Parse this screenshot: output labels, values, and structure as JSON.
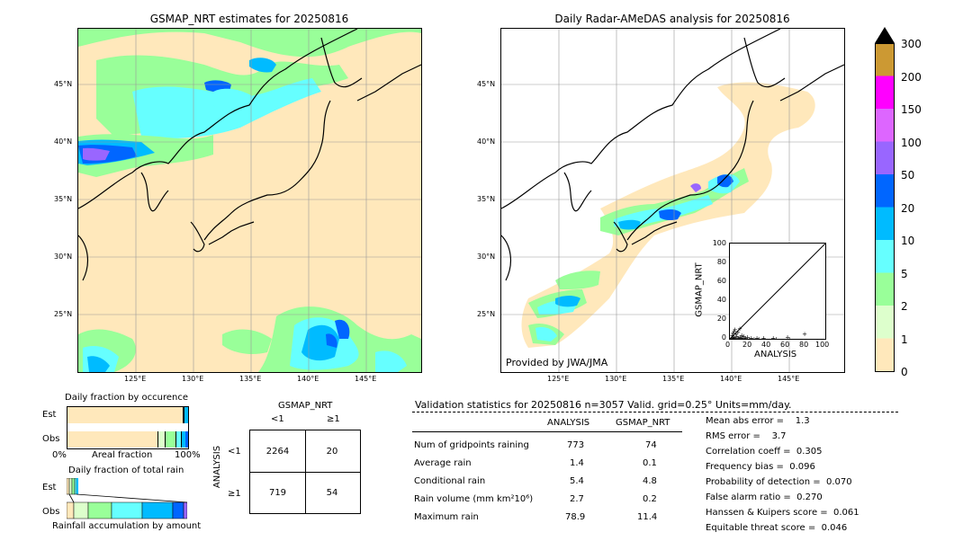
{
  "left_map": {
    "title": "GSMAP_NRT estimates for 20250816",
    "lat_labels": [
      "45°N",
      "40°N",
      "35°N",
      "30°N",
      "25°N"
    ],
    "lon_labels": [
      "125°E",
      "130°E",
      "135°E",
      "140°E",
      "145°E"
    ]
  },
  "right_map": {
    "title": "Daily Radar-AMeDAS analysis for 20250816",
    "lat_labels": [
      "45°N",
      "40°N",
      "35°N",
      "30°N",
      "25°N"
    ],
    "lon_labels": [
      "125°E",
      "130°E",
      "135°E",
      "140°E",
      "145°E"
    ],
    "credit": "Provided by JWA/JMA"
  },
  "colorbar": {
    "labels": [
      "300",
      "200",
      "150",
      "100",
      "50",
      "20",
      "10",
      "5",
      "2",
      "1",
      "0"
    ],
    "colors": [
      "#cc9933",
      "#ff00ff",
      "#dd66ff",
      "#9966ff",
      "#0066ff",
      "#00bbff",
      "#66ffff",
      "#99ff99",
      "#ddffcc",
      "#ffe8bb"
    ]
  },
  "scatter": {
    "xlabel": "ANALYSIS",
    "ylabel": "GSMAP_NRT",
    "ticks": [
      "0",
      "20",
      "40",
      "60",
      "80",
      "100"
    ]
  },
  "fraction_occurrence": {
    "title": "Daily fraction by occurence",
    "rows": [
      "Est",
      "Obs"
    ],
    "axis_left": "0%",
    "axis_mid": "Areal fraction",
    "axis_right": "100%"
  },
  "fraction_rain": {
    "title": "Daily fraction of total rain",
    "rows": [
      "Est",
      "Obs"
    ],
    "axis_label": "Rainfall accumulation by amount"
  },
  "contingency": {
    "top_header": "GSMAP_NRT",
    "col_labels": [
      "<1",
      "≥1"
    ],
    "side_header": "ANALYSIS",
    "row_labels": [
      "<1",
      "≥1"
    ],
    "cells": [
      [
        "2264",
        "20"
      ],
      [
        "719",
        "54"
      ]
    ]
  },
  "validation": {
    "header": "Validation statistics for 20250816  n=3057 Valid. grid=0.25° Units=mm/day.",
    "col_analysis": "ANALYSIS",
    "col_gsmap": "GSMAP_NRT",
    "rows": [
      {
        "label": "Num of gridpoints raining",
        "analysis": "773",
        "gsmap": "74"
      },
      {
        "label": "Average rain",
        "analysis": "1.4",
        "gsmap": "0.1"
      },
      {
        "label": "Conditional rain",
        "analysis": "5.4",
        "gsmap": "4.8"
      },
      {
        "label": "Rain volume (mm km²10⁶)",
        "analysis": "2.7",
        "gsmap": "0.2"
      },
      {
        "label": "Maximum rain",
        "analysis": "78.9",
        "gsmap": "11.4"
      }
    ],
    "scores": [
      "Mean abs error =    1.3",
      "RMS error =    3.7",
      "Correlation coeff =  0.305",
      "Frequency bias =  0.096",
      "Probability of detection =  0.070",
      "False alarm ratio =  0.270",
      "Hanssen & Kuipers score =  0.061",
      "Equitable threat score =  0.046"
    ]
  },
  "chart_data": {
    "type": "scatter",
    "xlabel": "ANALYSIS",
    "ylabel": "GSMAP_NRT",
    "xlim": [
      0,
      100
    ],
    "ylim": [
      0,
      100
    ],
    "points": [
      [
        1,
        0
      ],
      [
        2,
        1
      ],
      [
        3,
        0
      ],
      [
        4,
        2
      ],
      [
        5,
        1
      ],
      [
        6,
        0
      ],
      [
        7,
        3
      ],
      [
        8,
        1
      ],
      [
        9,
        0
      ],
      [
        10,
        2
      ],
      [
        11,
        1
      ],
      [
        12,
        0
      ],
      [
        13,
        1
      ],
      [
        14,
        3
      ],
      [
        15,
        0
      ],
      [
        16,
        1
      ],
      [
        18,
        2
      ],
      [
        20,
        0
      ],
      [
        22,
        1
      ],
      [
        25,
        0
      ],
      [
        28,
        1
      ],
      [
        30,
        0
      ],
      [
        35,
        1
      ],
      [
        45,
        1
      ],
      [
        48,
        0
      ],
      [
        60,
        2
      ],
      [
        62,
        0
      ],
      [
        78,
        5
      ],
      [
        2,
        4
      ],
      [
        3,
        6
      ],
      [
        4,
        8
      ],
      [
        5,
        10
      ],
      [
        6,
        5
      ],
      [
        8,
        7
      ],
      [
        10,
        11
      ],
      [
        12,
        4
      ],
      [
        3,
        2
      ],
      [
        4,
        0
      ]
    ]
  }
}
